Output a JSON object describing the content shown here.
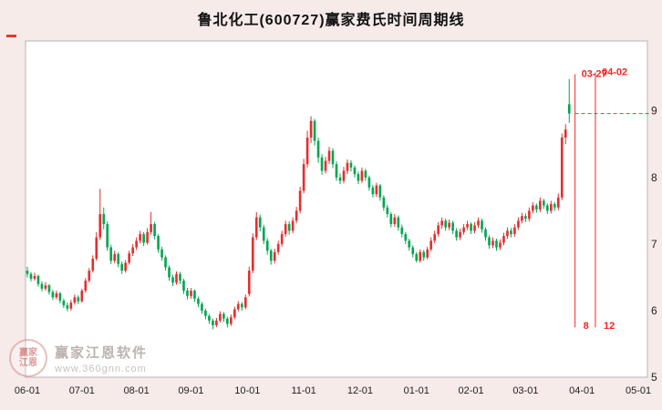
{
  "window": {
    "title": "鲁北化工(600727)赢家费氏时间周期线"
  },
  "watermark": {
    "brand": "赢家江恩软件",
    "url": "www.360gnn.com",
    "seal_top": "赢家",
    "seal_bottom": "江恩"
  },
  "colors": {
    "background": "#f6ebe9",
    "plot_background": "#ffffff",
    "plot_border": "#b5b5b5",
    "up": "#e62e2e",
    "down": "#00a651",
    "fib_line": "#ff2222",
    "level_line": "#00a651",
    "axis_text": "#222222",
    "watermark_text": "#b5abaa"
  },
  "chart_data": {
    "type": "candlestick",
    "title": "鲁北化工(600727)赢家费氏时间周期线",
    "xlabel": "",
    "ylabel": "",
    "grid": false,
    "legend": "none",
    "price_min": 5.0,
    "price_max": 10.05,
    "y_ticks": [
      9,
      8,
      7,
      6,
      5
    ],
    "total_slots": 171,
    "x_ticks": [
      {
        "label": "06-01",
        "index": 0
      },
      {
        "label": "07-01",
        "index": 15
      },
      {
        "label": "08-01",
        "index": 30
      },
      {
        "label": "09-01",
        "index": 45
      },
      {
        "label": "10-01",
        "index": 60.5
      },
      {
        "label": "11-01",
        "index": 76
      },
      {
        "label": "12-01",
        "index": 91.5
      },
      {
        "label": "01-01",
        "index": 107
      },
      {
        "label": "02-01",
        "index": 122
      },
      {
        "label": "03-01",
        "index": 137
      },
      {
        "label": "04-01",
        "index": 152.5
      },
      {
        "label": "05-01",
        "index": 168
      }
    ],
    "candles": [
      [
        6.6,
        6.66,
        6.5,
        6.55
      ],
      [
        6.55,
        6.58,
        6.44,
        6.48
      ],
      [
        6.48,
        6.57,
        6.45,
        6.52
      ],
      [
        6.52,
        6.54,
        6.36,
        6.4
      ],
      [
        6.4,
        6.44,
        6.29,
        6.33
      ],
      [
        6.33,
        6.43,
        6.3,
        6.38
      ],
      [
        6.38,
        6.4,
        6.24,
        6.28
      ],
      [
        6.28,
        6.31,
        6.16,
        6.2
      ],
      [
        6.2,
        6.3,
        6.17,
        6.26
      ],
      [
        6.26,
        6.28,
        6.11,
        6.15
      ],
      [
        6.15,
        6.18,
        6.04,
        6.08
      ],
      [
        6.08,
        6.12,
        5.99,
        6.03
      ],
      [
        6.03,
        6.16,
        6.0,
        6.12
      ],
      [
        6.12,
        6.24,
        6.09,
        6.2
      ],
      [
        6.2,
        6.23,
        6.1,
        6.14
      ],
      [
        6.14,
        6.33,
        6.12,
        6.3
      ],
      [
        6.3,
        6.49,
        6.27,
        6.45
      ],
      [
        6.45,
        6.64,
        6.42,
        6.6
      ],
      [
        6.6,
        6.83,
        6.57,
        6.78
      ],
      [
        6.78,
        7.18,
        6.75,
        7.1
      ],
      [
        7.1,
        7.83,
        7.06,
        7.45
      ],
      [
        7.45,
        7.55,
        7.22,
        7.3
      ],
      [
        7.3,
        7.34,
        6.9,
        6.95
      ],
      [
        6.95,
        6.99,
        6.7,
        6.75
      ],
      [
        6.75,
        6.9,
        6.71,
        6.85
      ],
      [
        6.85,
        6.88,
        6.65,
        6.7
      ],
      [
        6.7,
        6.74,
        6.55,
        6.6
      ],
      [
        6.6,
        6.76,
        6.57,
        6.72
      ],
      [
        6.72,
        6.9,
        6.69,
        6.86
      ],
      [
        6.86,
        7.0,
        6.82,
        6.95
      ],
      [
        6.95,
        7.1,
        6.91,
        7.05
      ],
      [
        7.05,
        7.2,
        7.01,
        7.15
      ],
      [
        7.15,
        7.18,
        6.97,
        7.02
      ],
      [
        7.02,
        7.24,
        6.99,
        7.18
      ],
      [
        7.18,
        7.48,
        7.14,
        7.3
      ],
      [
        7.3,
        7.33,
        7.07,
        7.12
      ],
      [
        7.12,
        7.15,
        6.87,
        6.92
      ],
      [
        6.92,
        6.96,
        6.75,
        6.8
      ],
      [
        6.8,
        6.83,
        6.6,
        6.65
      ],
      [
        6.65,
        6.68,
        6.45,
        6.5
      ],
      [
        6.5,
        6.54,
        6.37,
        6.42
      ],
      [
        6.42,
        6.59,
        6.39,
        6.55
      ],
      [
        6.55,
        6.58,
        6.4,
        6.45
      ],
      [
        6.45,
        6.48,
        6.25,
        6.3
      ],
      [
        6.3,
        6.34,
        6.17,
        6.22
      ],
      [
        6.22,
        6.34,
        6.18,
        6.3
      ],
      [
        6.3,
        6.32,
        6.13,
        6.18
      ],
      [
        6.18,
        6.21,
        6.05,
        6.1
      ],
      [
        6.1,
        6.13,
        5.95,
        6.0
      ],
      [
        6.0,
        6.03,
        5.87,
        5.92
      ],
      [
        5.92,
        5.95,
        5.8,
        5.85
      ],
      [
        5.85,
        5.88,
        5.72,
        5.78
      ],
      [
        5.78,
        5.89,
        5.75,
        5.85
      ],
      [
        5.85,
        5.99,
        5.82,
        5.95
      ],
      [
        5.95,
        5.98,
        5.83,
        5.88
      ],
      [
        5.88,
        5.91,
        5.75,
        5.8
      ],
      [
        5.8,
        5.94,
        5.77,
        5.9
      ],
      [
        5.9,
        6.06,
        5.87,
        6.02
      ],
      [
        6.02,
        6.14,
        5.99,
        6.1
      ],
      [
        6.1,
        6.13,
        6.0,
        6.05
      ],
      [
        6.05,
        6.24,
        6.02,
        6.2
      ],
      [
        6.25,
        6.66,
        6.21,
        6.6
      ],
      [
        6.6,
        7.16,
        6.56,
        7.1
      ],
      [
        7.1,
        7.48,
        7.06,
        7.4
      ],
      [
        7.4,
        7.44,
        7.19,
        7.25
      ],
      [
        7.25,
        7.29,
        7.0,
        7.05
      ],
      [
        7.05,
        7.09,
        6.84,
        6.9
      ],
      [
        6.9,
        6.93,
        6.69,
        6.75
      ],
      [
        6.75,
        6.93,
        6.71,
        6.88
      ],
      [
        6.88,
        7.05,
        6.84,
        7.0
      ],
      [
        7.0,
        7.2,
        6.96,
        7.15
      ],
      [
        7.15,
        7.35,
        7.11,
        7.3
      ],
      [
        7.3,
        7.34,
        7.14,
        7.2
      ],
      [
        7.2,
        7.4,
        7.16,
        7.35
      ],
      [
        7.35,
        7.56,
        7.31,
        7.5
      ],
      [
        7.5,
        7.86,
        7.46,
        7.8
      ],
      [
        7.8,
        8.28,
        7.76,
        8.2
      ],
      [
        8.2,
        8.7,
        8.15,
        8.6
      ],
      [
        8.6,
        8.92,
        8.52,
        8.85
      ],
      [
        8.85,
        8.88,
        8.48,
        8.55
      ],
      [
        8.55,
        8.6,
        8.22,
        8.3
      ],
      [
        8.3,
        8.35,
        8.04,
        8.1
      ],
      [
        8.1,
        8.31,
        8.06,
        8.25
      ],
      [
        8.25,
        8.46,
        8.2,
        8.4
      ],
      [
        8.4,
        8.44,
        8.14,
        8.2
      ],
      [
        8.2,
        8.24,
        7.95,
        8.0
      ],
      [
        8.0,
        8.06,
        7.9,
        7.95
      ],
      [
        7.95,
        8.16,
        7.91,
        8.1
      ],
      [
        8.1,
        8.27,
        8.05,
        8.22
      ],
      [
        8.22,
        8.26,
        8.09,
        8.15
      ],
      [
        8.15,
        8.18,
        8.0,
        8.05
      ],
      [
        8.05,
        8.09,
        7.9,
        7.95
      ],
      [
        7.95,
        8.15,
        7.92,
        8.1
      ],
      [
        8.1,
        8.13,
        7.95,
        8.0
      ],
      [
        8.0,
        8.03,
        7.8,
        7.85
      ],
      [
        7.85,
        7.89,
        7.7,
        7.75
      ],
      [
        7.75,
        7.92,
        7.71,
        7.88
      ],
      [
        7.88,
        7.9,
        7.65,
        7.7
      ],
      [
        7.7,
        7.73,
        7.5,
        7.55
      ],
      [
        7.55,
        7.59,
        7.4,
        7.45
      ],
      [
        7.45,
        7.48,
        7.25,
        7.3
      ],
      [
        7.3,
        7.45,
        7.26,
        7.4
      ],
      [
        7.4,
        7.43,
        7.2,
        7.25
      ],
      [
        7.25,
        7.29,
        7.1,
        7.15
      ],
      [
        7.15,
        7.18,
        7.0,
        7.05
      ],
      [
        7.05,
        7.08,
        6.9,
        6.95
      ],
      [
        6.95,
        6.98,
        6.8,
        6.85
      ],
      [
        6.85,
        6.88,
        6.72,
        6.75
      ],
      [
        6.75,
        6.92,
        6.72,
        6.88
      ],
      [
        6.88,
        6.91,
        6.75,
        6.8
      ],
      [
        6.8,
        6.96,
        6.77,
        6.92
      ],
      [
        6.92,
        7.1,
        6.89,
        7.05
      ],
      [
        7.05,
        7.2,
        7.01,
        7.15
      ],
      [
        7.15,
        7.33,
        7.11,
        7.28
      ],
      [
        7.28,
        7.4,
        7.23,
        7.35
      ],
      [
        7.35,
        7.38,
        7.2,
        7.25
      ],
      [
        7.25,
        7.37,
        7.21,
        7.32
      ],
      [
        7.32,
        7.35,
        7.15,
        7.2
      ],
      [
        7.2,
        7.24,
        7.05,
        7.1
      ],
      [
        7.1,
        7.23,
        7.06,
        7.18
      ],
      [
        7.18,
        7.3,
        7.14,
        7.25
      ],
      [
        7.25,
        7.35,
        7.21,
        7.3
      ],
      [
        7.3,
        7.33,
        7.15,
        7.2
      ],
      [
        7.2,
        7.33,
        7.16,
        7.28
      ],
      [
        7.28,
        7.4,
        7.24,
        7.35
      ],
      [
        7.35,
        7.38,
        7.17,
        7.22
      ],
      [
        7.22,
        7.25,
        7.05,
        7.1
      ],
      [
        7.1,
        7.13,
        6.93,
        6.98
      ],
      [
        6.98,
        7.1,
        6.94,
        7.05
      ],
      [
        7.05,
        7.08,
        6.9,
        6.95
      ],
      [
        6.95,
        7.07,
        6.91,
        7.02
      ],
      [
        7.02,
        7.17,
        6.98,
        7.12
      ],
      [
        7.12,
        7.25,
        7.08,
        7.2
      ],
      [
        7.2,
        7.24,
        7.1,
        7.15
      ],
      [
        7.15,
        7.3,
        7.11,
        7.25
      ],
      [
        7.25,
        7.4,
        7.21,
        7.35
      ],
      [
        7.35,
        7.47,
        7.31,
        7.42
      ],
      [
        7.42,
        7.46,
        7.33,
        7.38
      ],
      [
        7.38,
        7.55,
        7.34,
        7.5
      ],
      [
        7.5,
        7.63,
        7.46,
        7.58
      ],
      [
        7.58,
        7.61,
        7.47,
        7.52
      ],
      [
        7.52,
        7.7,
        7.48,
        7.65
      ],
      [
        7.65,
        7.68,
        7.53,
        7.58
      ],
      [
        7.58,
        7.61,
        7.45,
        7.5
      ],
      [
        7.5,
        7.65,
        7.46,
        7.6
      ],
      [
        7.6,
        7.63,
        7.5,
        7.55
      ],
      [
        7.55,
        7.76,
        7.51,
        7.7
      ],
      [
        7.7,
        8.66,
        7.66,
        8.6
      ],
      [
        8.6,
        8.8,
        8.5,
        8.72
      ],
      [
        9.1,
        9.48,
        8.82,
        8.96
      ]
    ],
    "level_line": {
      "price": 8.96,
      "from_index": 150.6
    },
    "fib_time_lines": [
      {
        "index": 150.6,
        "price_top": 9.55,
        "price_bottom": 5.75,
        "top_label": "03-27",
        "bottom_label": "8"
      },
      {
        "index": 156.2,
        "price_top": 9.58,
        "price_bottom": 5.75,
        "top_label": "04-02",
        "bottom_label": "12"
      }
    ]
  }
}
